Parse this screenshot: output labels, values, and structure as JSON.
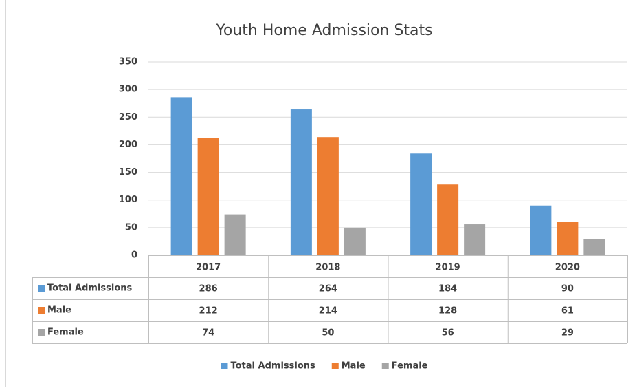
{
  "chart_data": {
    "type": "bar",
    "title": "Youth Home Admission Stats",
    "categories": [
      "2017",
      "2018",
      "2019",
      "2020"
    ],
    "series": [
      {
        "name": "Total Admissions",
        "color": "#5b9bd5",
        "values": [
          286,
          264,
          184,
          90
        ]
      },
      {
        "name": "Male",
        "color": "#ed7d31",
        "values": [
          212,
          214,
          128,
          61
        ]
      },
      {
        "name": "Female",
        "color": "#a5a5a5",
        "values": [
          74,
          50,
          56,
          29
        ]
      }
    ],
    "ylim": [
      0,
      350
    ],
    "yticks": [
      0,
      50,
      100,
      150,
      200,
      250,
      300,
      350
    ],
    "grid": true,
    "legend": "bottom",
    "data_table": true
  }
}
